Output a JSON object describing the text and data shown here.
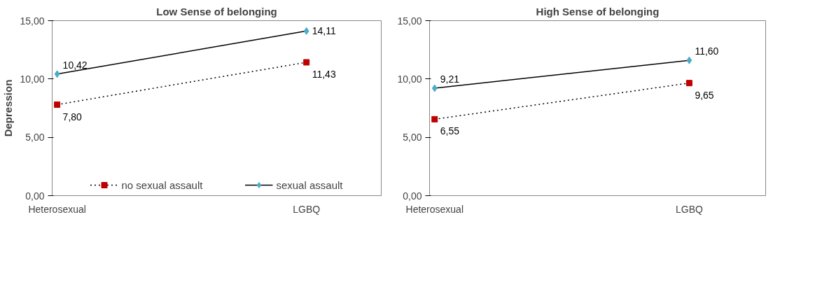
{
  "chart_data": [
    {
      "type": "line",
      "title": "Low Sense of belonging",
      "ylabel": "Depression",
      "categories": [
        "Heterosexual",
        "LGBQ"
      ],
      "ylim": [
        0,
        15
      ],
      "yticks": [
        {
          "value": 0,
          "label": "0,00"
        },
        {
          "value": 5,
          "label": "5,00"
        },
        {
          "value": 10,
          "label": "10,00"
        },
        {
          "value": 15,
          "label": "15,00"
        }
      ],
      "grid": false,
      "legend": "bottom",
      "series": [
        {
          "name": "no sexual assault",
          "color": "#c00000",
          "marker": "square",
          "line_style": "dotted",
          "values": [
            7.8,
            11.43
          ],
          "value_labels": [
            "7,80",
            "11,43"
          ]
        },
        {
          "name": "sexual assault",
          "color": "#4bacc6",
          "marker": "diamond",
          "line_style": "solid",
          "values": [
            10.42,
            14.11
          ],
          "value_labels": [
            "10,42",
            "14,11"
          ]
        }
      ]
    },
    {
      "type": "line",
      "title": "High Sense of belonging",
      "categories": [
        "Heterosexual",
        "LGBQ"
      ],
      "ylim": [
        0,
        15
      ],
      "yticks": [
        {
          "value": 0,
          "label": "0,00"
        },
        {
          "value": 5,
          "label": "5,00"
        },
        {
          "value": 10,
          "label": "10,00"
        },
        {
          "value": 15,
          "label": "15,00"
        }
      ],
      "grid": false,
      "series": [
        {
          "color": "#c00000",
          "marker": "square",
          "line_style": "dotted",
          "values": [
            6.55,
            9.65
          ],
          "value_labels": [
            "6,55",
            "9,65"
          ]
        },
        {
          "color": "#4bacc6",
          "marker": "diamond",
          "line_style": "solid",
          "values": [
            9.21,
            11.6
          ],
          "value_labels": [
            "9,21",
            "11,60"
          ]
        }
      ]
    }
  ]
}
